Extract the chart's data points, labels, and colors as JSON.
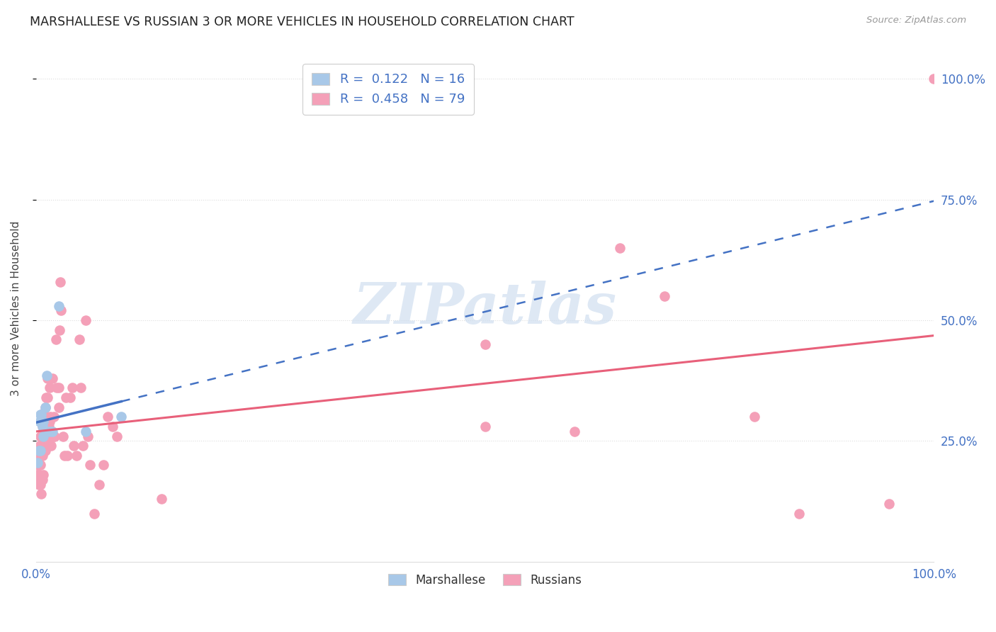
{
  "title": "MARSHALLESE VS RUSSIAN 3 OR MORE VEHICLES IN HOUSEHOLD CORRELATION CHART",
  "source": "Source: ZipAtlas.com",
  "ylabel": "3 or more Vehicles in Household",
  "legend_marshallese_r": "0.122",
  "legend_marshallese_n": "16",
  "legend_russian_r": "0.458",
  "legend_russian_n": "79",
  "legend_label1": "Marshallese",
  "legend_label2": "Russians",
  "marshallese_color": "#a8c8e8",
  "russian_color": "#f4a0b8",
  "marshallese_line_color": "#4472c4",
  "russian_line_color": "#e8607a",
  "label_color": "#4472c4",
  "watermark_text": "ZIPatlas",
  "watermark_color": "#d0dff0",
  "background_color": "#ffffff",
  "grid_color": "#dddddd",
  "xmin": 0.0,
  "xmax": 1.0,
  "ymin": 0.0,
  "ymax": 1.05,
  "marshallese_x": [
    0.002,
    0.003,
    0.004,
    0.005,
    0.005,
    0.006,
    0.007,
    0.008,
    0.008,
    0.01,
    0.012,
    0.015,
    0.018,
    0.025,
    0.055,
    0.095
  ],
  "marshallese_y": [
    0.205,
    0.23,
    0.29,
    0.23,
    0.305,
    0.305,
    0.28,
    0.26,
    0.29,
    0.32,
    0.385,
    0.27,
    0.27,
    0.53,
    0.27,
    0.3
  ],
  "russian_x": [
    0.001,
    0.002,
    0.002,
    0.003,
    0.003,
    0.003,
    0.004,
    0.004,
    0.004,
    0.005,
    0.005,
    0.005,
    0.005,
    0.006,
    0.006,
    0.006,
    0.007,
    0.007,
    0.007,
    0.008,
    0.008,
    0.008,
    0.009,
    0.009,
    0.01,
    0.01,
    0.01,
    0.011,
    0.011,
    0.012,
    0.012,
    0.013,
    0.013,
    0.014,
    0.015,
    0.015,
    0.016,
    0.017,
    0.018,
    0.019,
    0.02,
    0.021,
    0.022,
    0.023,
    0.025,
    0.025,
    0.026,
    0.027,
    0.028,
    0.03,
    0.032,
    0.033,
    0.035,
    0.038,
    0.04,
    0.042,
    0.045,
    0.048,
    0.05,
    0.052,
    0.055,
    0.058,
    0.06,
    0.065,
    0.07,
    0.075,
    0.08,
    0.085,
    0.09,
    0.5,
    0.6,
    0.65,
    0.7,
    0.8,
    0.85,
    0.95,
    0.5,
    0.14,
    1.0
  ],
  "russian_y": [
    0.2,
    0.18,
    0.22,
    0.16,
    0.17,
    0.2,
    0.18,
    0.22,
    0.24,
    0.16,
    0.2,
    0.22,
    0.26,
    0.14,
    0.22,
    0.26,
    0.17,
    0.22,
    0.28,
    0.18,
    0.24,
    0.26,
    0.26,
    0.3,
    0.23,
    0.26,
    0.32,
    0.28,
    0.34,
    0.25,
    0.3,
    0.34,
    0.38,
    0.28,
    0.29,
    0.36,
    0.3,
    0.24,
    0.38,
    0.26,
    0.3,
    0.26,
    0.46,
    0.36,
    0.32,
    0.36,
    0.48,
    0.58,
    0.52,
    0.26,
    0.22,
    0.34,
    0.22,
    0.34,
    0.36,
    0.24,
    0.22,
    0.46,
    0.36,
    0.24,
    0.5,
    0.26,
    0.2,
    0.1,
    0.16,
    0.2,
    0.3,
    0.28,
    0.26,
    0.28,
    0.27,
    0.65,
    0.55,
    0.3,
    0.1,
    0.12,
    0.45,
    0.13,
    1.0
  ]
}
